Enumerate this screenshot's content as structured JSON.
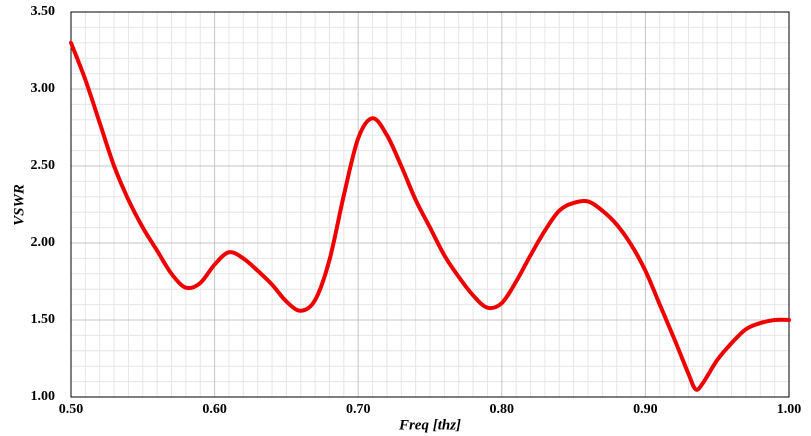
{
  "chart_data": {
    "type": "line",
    "x_label": "Freq [thz]",
    "y_label": "VSWR",
    "xlim": [
      0.5,
      1.0
    ],
    "xticks": [
      {
        "value": 0.5,
        "label": "0.50"
      },
      {
        "value": 0.6,
        "label": "0.60"
      },
      {
        "value": 0.7,
        "label": "0.70"
      },
      {
        "value": 0.8,
        "label": "0.80"
      },
      {
        "value": 0.9,
        "label": "0.90"
      },
      {
        "value": 1.0,
        "label": "1.00"
      }
    ],
    "ylim": [
      1.0,
      3.5
    ],
    "yticks": [
      {
        "value": 1.0,
        "label": "1.00"
      },
      {
        "value": 1.5,
        "label": "1.50"
      },
      {
        "value": 2.0,
        "label": "2.00"
      },
      {
        "value": 2.5,
        "label": "2.50"
      },
      {
        "value": 3.0,
        "label": "3.00"
      },
      {
        "value": 3.5,
        "label": "3.50"
      }
    ],
    "grid": true,
    "x": [
      0.5,
      0.51,
      0.52,
      0.53,
      0.54,
      0.55,
      0.56,
      0.57,
      0.58,
      0.59,
      0.6,
      0.61,
      0.62,
      0.63,
      0.64,
      0.65,
      0.66,
      0.67,
      0.68,
      0.69,
      0.7,
      0.71,
      0.72,
      0.73,
      0.74,
      0.75,
      0.76,
      0.77,
      0.78,
      0.79,
      0.8,
      0.81,
      0.82,
      0.83,
      0.84,
      0.85,
      0.86,
      0.87,
      0.88,
      0.89,
      0.9,
      0.91,
      0.92,
      0.93,
      0.935,
      0.94,
      0.95,
      0.96,
      0.97,
      0.98,
      0.99,
      1.0
    ],
    "series": [
      {
        "color": "#ee0000",
        "values": [
          3.3,
          3.06,
          2.78,
          2.5,
          2.28,
          2.1,
          1.95,
          1.8,
          1.71,
          1.74,
          1.86,
          1.94,
          1.9,
          1.82,
          1.73,
          1.62,
          1.56,
          1.63,
          1.89,
          2.31,
          2.68,
          2.81,
          2.7,
          2.5,
          2.28,
          2.1,
          1.92,
          1.78,
          1.66,
          1.58,
          1.61,
          1.75,
          1.92,
          2.08,
          2.21,
          2.26,
          2.27,
          2.21,
          2.12,
          1.99,
          1.82,
          1.6,
          1.38,
          1.15,
          1.05,
          1.09,
          1.24,
          1.35,
          1.44,
          1.48,
          1.5,
          1.5
        ]
      }
    ]
  }
}
